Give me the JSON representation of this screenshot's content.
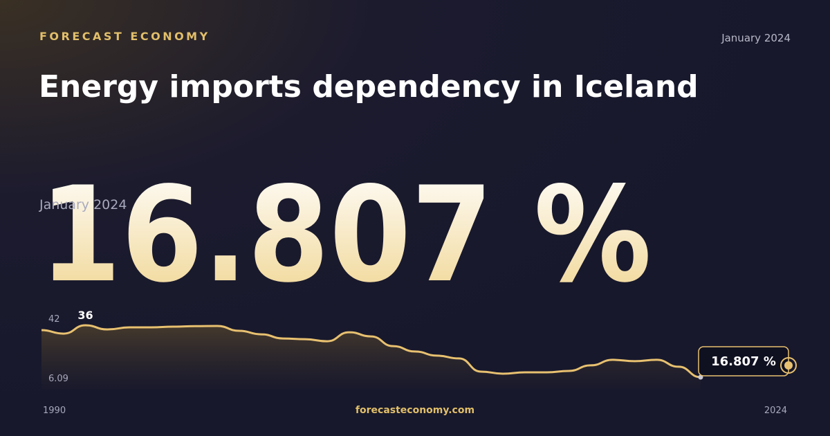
{
  "chart_data": {
    "type": "line",
    "kicker": "FORECAST ECONOMY",
    "date": "January 2024",
    "title": "Energy imports dependency in Iceland",
    "headline": {
      "value": 16.807,
      "label": "16.807 %"
    },
    "source": "forecasteconomy.com",
    "x": [
      1990,
      1991,
      1992,
      1993,
      1994,
      1995,
      1996,
      1997,
      1998,
      1999,
      2000,
      2001,
      2002,
      2003,
      2004,
      2005,
      2006,
      2007,
      2008,
      2009,
      2010,
      2011,
      2012,
      2013,
      2014,
      2015,
      2016,
      2017,
      2018,
      2019,
      2020
    ],
    "values": [
      33.2,
      31.2,
      36,
      33.6,
      34.8,
      34.8,
      35.2,
      35.5,
      35.6,
      32.8,
      30.8,
      28.4,
      28.0,
      26.8,
      32.0,
      29.6,
      24.0,
      20.9,
      18.5,
      16.9,
      9.3,
      8.1,
      8.9,
      8.9,
      9.7,
      12.9,
      16.1,
      15.3,
      16.1,
      12.1,
      6.09
    ],
    "xlim": [
      1990,
      2024
    ],
    "xticks": [
      1990,
      2024
    ],
    "ylim": [
      6.09,
      42
    ],
    "yticks": [
      42,
      6.09
    ],
    "color": "#e8c170"
  }
}
